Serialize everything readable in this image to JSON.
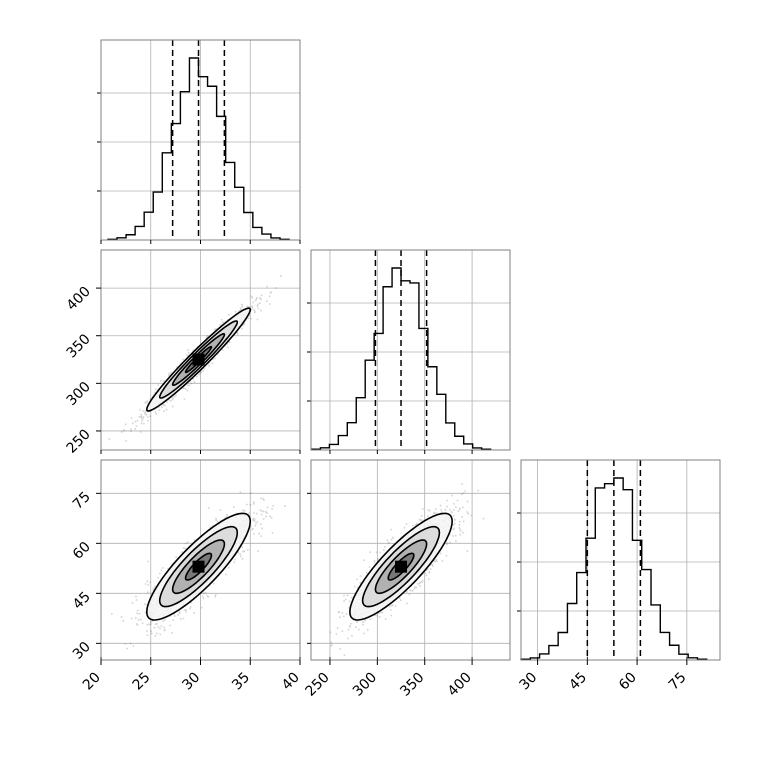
{
  "chart_data": {
    "type": "corner",
    "parameters": [
      {
        "ticks": [
          20,
          25,
          30,
          35,
          40
        ],
        "range": [
          20,
          40
        ],
        "mean": 29.8,
        "std": 2.6,
        "quantiles": [
          27.2,
          29.8,
          32.4
        ],
        "hist_peak": 0.08,
        "grid": true
      },
      {
        "ticks": [
          250,
          300,
          350,
          400
        ],
        "range": [
          230,
          440
        ],
        "mean": 325,
        "std": 27,
        "quantiles": [
          298,
          325,
          352
        ],
        "hist_peak": 0.0076,
        "grid": true
      },
      {
        "ticks": [
          30,
          45,
          60,
          75
        ],
        "range": [
          25,
          85
        ],
        "mean": 53,
        "std": 8,
        "quantiles": [
          45,
          53,
          61
        ],
        "hist_peak": 0.05,
        "grid": true
      }
    ],
    "pairs": [
      {
        "x_param": 0,
        "y_param": 1,
        "correlation": 0.97
      },
      {
        "x_param": 0,
        "y_param": 2,
        "correlation": 0.85
      },
      {
        "x_param": 1,
        "y_param": 2,
        "correlation": 0.85
      }
    ],
    "contour_levels_sigma": [
      0.5,
      1.0,
      1.5,
      2.0
    ],
    "colors": {
      "contour": "#000000",
      "points": "#555555",
      "grid": "#b0b0b0",
      "frame": "#808080"
    }
  }
}
